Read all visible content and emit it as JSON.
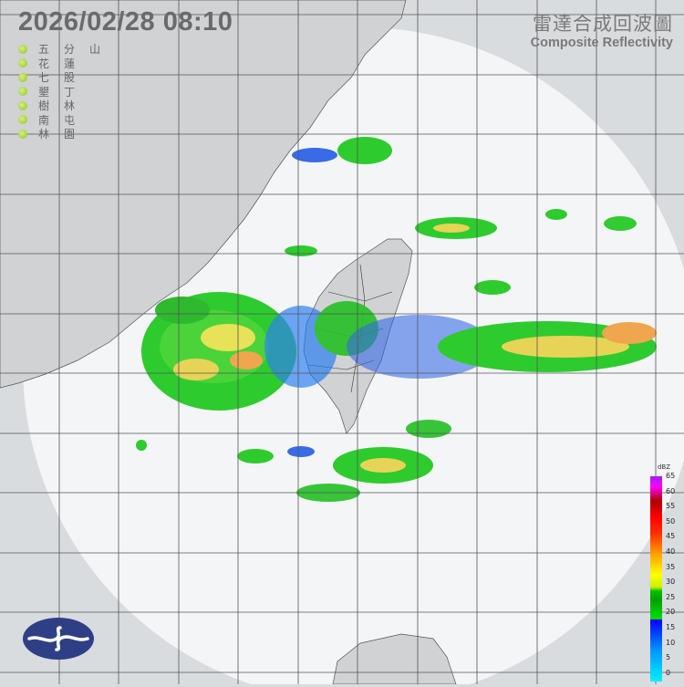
{
  "header": {
    "timestamp": "2026/02/28  08:10",
    "product_title_zh": "雷達合成回波圖",
    "product_title_en": "Composite Reflectivity"
  },
  "stations": [
    {
      "name": "五分山",
      "status_color": "#9acd32"
    },
    {
      "name": "花蓮",
      "status_color": "#9acd32"
    },
    {
      "name": "七股",
      "status_color": "#9acd32"
    },
    {
      "name": "墾丁",
      "status_color": "#9acd32"
    },
    {
      "name": "樹林",
      "status_color": "#9acd32"
    },
    {
      "name": "南屯",
      "status_color": "#9acd32"
    },
    {
      "name": "林園",
      "status_color": "#9acd32"
    }
  ],
  "colorbar": {
    "unit": "dBZ",
    "ticks": [
      "65",
      "60",
      "55",
      "50",
      "45",
      "40",
      "35",
      "30",
      "25",
      "20",
      "15",
      "10",
      "5",
      "0"
    ]
  },
  "logo": {
    "name": "cwa-logo-icon",
    "color": "#2f3f86"
  }
}
